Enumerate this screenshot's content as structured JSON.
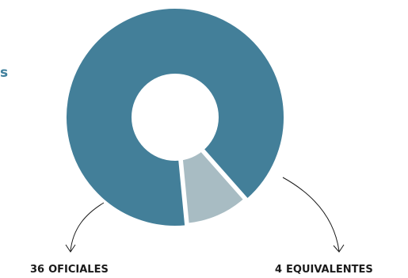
{
  "edge_text": "s",
  "chart_data": {
    "type": "pie",
    "donut": true,
    "slices": [
      {
        "label": "OFICIALES",
        "value": 36,
        "color": "#437f99"
      },
      {
        "label": "EQUIVALENTES",
        "value": 4,
        "color": "#a8bcc3"
      }
    ]
  },
  "labels": {
    "left": {
      "number": "36",
      "text": "OFICIALES"
    },
    "right": {
      "number": "4",
      "text": "EQUIVALENTES"
    }
  }
}
